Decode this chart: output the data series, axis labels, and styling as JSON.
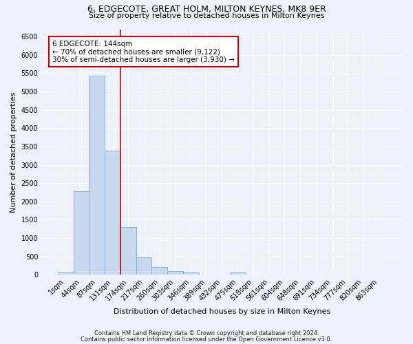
{
  "title1": "6, EDGECOTE, GREAT HOLM, MILTON KEYNES, MK8 9ER",
  "title2": "Size of property relative to detached houses in Milton Keynes",
  "xlabel": "Distribution of detached houses by size in Milton Keynes",
  "ylabel": "Number of detached properties",
  "footnote1": "Contains HM Land Registry data © Crown copyright and database right 2024.",
  "footnote2": "Contains public sector information licensed under the Open Government Licence v3.0.",
  "bar_color": "#c8d9ef",
  "bar_edge_color": "#7aadd4",
  "categories": [
    "1sqm",
    "44sqm",
    "87sqm",
    "131sqm",
    "174sqm",
    "217sqm",
    "260sqm",
    "303sqm",
    "346sqm",
    "389sqm",
    "432sqm",
    "475sqm",
    "518sqm",
    "561sqm",
    "604sqm",
    "648sqm",
    "691sqm",
    "734sqm",
    "777sqm",
    "820sqm",
    "863sqm"
  ],
  "values": [
    70,
    2280,
    5430,
    3380,
    1300,
    480,
    215,
    100,
    65,
    10,
    5,
    55,
    0,
    0,
    0,
    0,
    0,
    0,
    0,
    0,
    0
  ],
  "ylim": [
    0,
    6700
  ],
  "yticks": [
    0,
    500,
    1000,
    1500,
    2000,
    2500,
    3000,
    3500,
    4000,
    4500,
    5000,
    5500,
    6000,
    6500
  ],
  "vline_x": 3.5,
  "vline_color": "#cc0000",
  "annotation_text": "6 EDGECOTE: 144sqm\n← 70% of detached houses are smaller (9,122)\n30% of semi-detached houses are larger (3,930) →",
  "bg_color": "#edf2fa",
  "grid_color": "white",
  "title1_fontsize": 9,
  "title2_fontsize": 8,
  "ylabel_fontsize": 8,
  "xlabel_fontsize": 8,
  "tick_fontsize": 7,
  "footnote_fontsize": 6
}
